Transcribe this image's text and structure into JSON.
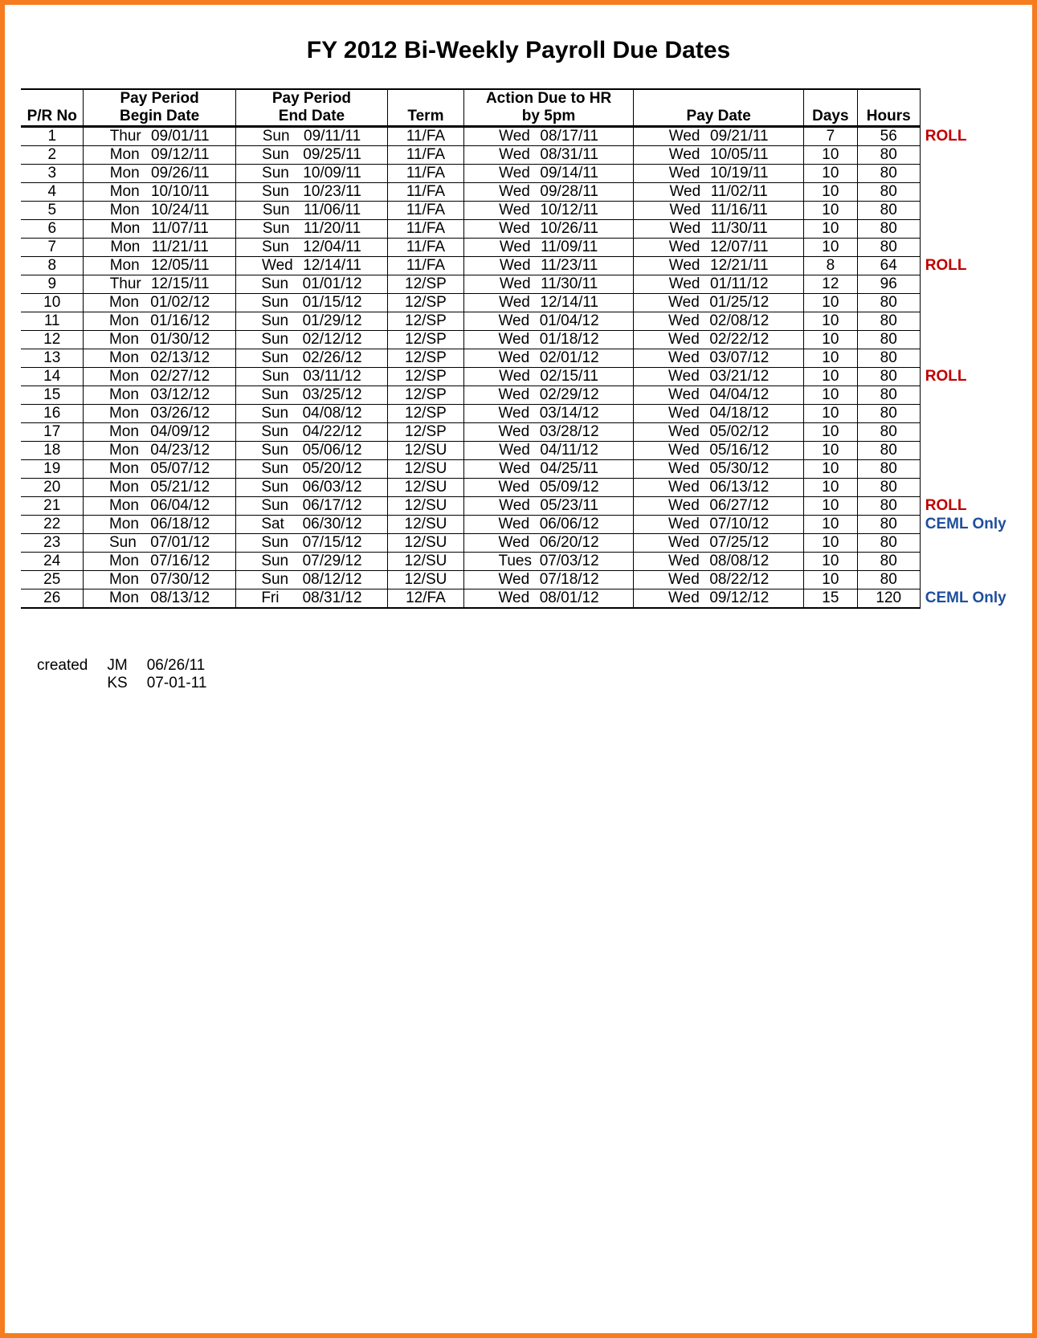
{
  "title": "FY 2012 Bi-Weekly Payroll Due Dates",
  "colors": {
    "border": "#f57c1f",
    "text": "#000000",
    "roll": "#c00000",
    "ceml": "#1f4e9c",
    "rule": "#000000"
  },
  "typography": {
    "title_fontsize": 30,
    "body_fontsize": 19,
    "font_family": "Arial"
  },
  "headers": {
    "prno": "P/R No",
    "begin_top": "Pay Period",
    "begin_bot": "Begin Date",
    "end_top": "Pay Period",
    "end_bot": "End Date",
    "term": "Term",
    "hr_top": "Action Due to HR",
    "hr_bot": "by 5pm",
    "pay": "Pay Date",
    "days": "Days",
    "hours": "Hours"
  },
  "rows": [
    {
      "no": "1",
      "bd": "Thur",
      "bdate": "09/01/11",
      "ed": "Sun",
      "edate": "09/11/11",
      "term": "11/FA",
      "hrd": "Wed",
      "hrdate": "08/17/11",
      "pd": "Wed",
      "pdate": "09/21/11",
      "days": "7",
      "hours": "56",
      "note": "ROLL",
      "note_type": "roll"
    },
    {
      "no": "2",
      "bd": "Mon",
      "bdate": "09/12/11",
      "ed": "Sun",
      "edate": "09/25/11",
      "term": "11/FA",
      "hrd": "Wed",
      "hrdate": "08/31/11",
      "pd": "Wed",
      "pdate": "10/05/11",
      "days": "10",
      "hours": "80",
      "note": "",
      "note_type": ""
    },
    {
      "no": "3",
      "bd": "Mon",
      "bdate": "09/26/11",
      "ed": "Sun",
      "edate": "10/09/11",
      "term": "11/FA",
      "hrd": "Wed",
      "hrdate": "09/14/11",
      "pd": "Wed",
      "pdate": "10/19/11",
      "days": "10",
      "hours": "80",
      "note": "",
      "note_type": ""
    },
    {
      "no": "4",
      "bd": "Mon",
      "bdate": "10/10/11",
      "ed": "Sun",
      "edate": "10/23/11",
      "term": "11/FA",
      "hrd": "Wed",
      "hrdate": "09/28/11",
      "pd": "Wed",
      "pdate": "11/02/11",
      "days": "10",
      "hours": "80",
      "note": "",
      "note_type": ""
    },
    {
      "no": "5",
      "bd": "Mon",
      "bdate": "10/24/11",
      "ed": "Sun",
      "edate": "11/06/11",
      "term": "11/FA",
      "hrd": "Wed",
      "hrdate": "10/12/11",
      "pd": "Wed",
      "pdate": "11/16/11",
      "days": "10",
      "hours": "80",
      "note": "",
      "note_type": ""
    },
    {
      "no": "6",
      "bd": "Mon",
      "bdate": "11/07/11",
      "ed": "Sun",
      "edate": "11/20/11",
      "term": "11/FA",
      "hrd": "Wed",
      "hrdate": "10/26/11",
      "pd": "Wed",
      "pdate": "11/30/11",
      "days": "10",
      "hours": "80",
      "note": "",
      "note_type": ""
    },
    {
      "no": "7",
      "bd": "Mon",
      "bdate": "11/21/11",
      "ed": "Sun",
      "edate": "12/04/11",
      "term": "11/FA",
      "hrd": "Wed",
      "hrdate": "11/09/11",
      "pd": "Wed",
      "pdate": "12/07/11",
      "days": "10",
      "hours": "80",
      "note": "",
      "note_type": ""
    },
    {
      "no": "8",
      "bd": "Mon",
      "bdate": "12/05/11",
      "ed": "Wed",
      "edate": "12/14/11",
      "term": "11/FA",
      "hrd": "Wed",
      "hrdate": "11/23/11",
      "pd": "Wed",
      "pdate": "12/21/11",
      "days": "8",
      "hours": "64",
      "note": "ROLL",
      "note_type": "roll"
    },
    {
      "no": "9",
      "bd": "Thur",
      "bdate": "12/15/11",
      "ed": "Sun",
      "edate": "01/01/12",
      "term": "12/SP",
      "hrd": "Wed",
      "hrdate": "11/30/11",
      "pd": "Wed",
      "pdate": "01/11/12",
      "days": "12",
      "hours": "96",
      "note": "",
      "note_type": ""
    },
    {
      "no": "10",
      "bd": "Mon",
      "bdate": "01/02/12",
      "ed": "Sun",
      "edate": "01/15/12",
      "term": "12/SP",
      "hrd": "Wed",
      "hrdate": "12/14/11",
      "pd": "Wed",
      "pdate": "01/25/12",
      "days": "10",
      "hours": "80",
      "note": "",
      "note_type": ""
    },
    {
      "no": "11",
      "bd": "Mon",
      "bdate": "01/16/12",
      "ed": "Sun",
      "edate": "01/29/12",
      "term": "12/SP",
      "hrd": "Wed",
      "hrdate": "01/04/12",
      "pd": "Wed",
      "pdate": "02/08/12",
      "days": "10",
      "hours": "80",
      "note": "",
      "note_type": ""
    },
    {
      "no": "12",
      "bd": "Mon",
      "bdate": "01/30/12",
      "ed": "Sun",
      "edate": "02/12/12",
      "term": "12/SP",
      "hrd": "Wed",
      "hrdate": "01/18/12",
      "pd": "Wed",
      "pdate": "02/22/12",
      "days": "10",
      "hours": "80",
      "note": "",
      "note_type": ""
    },
    {
      "no": "13",
      "bd": "Mon",
      "bdate": "02/13/12",
      "ed": "Sun",
      "edate": "02/26/12",
      "term": "12/SP",
      "hrd": "Wed",
      "hrdate": "02/01/12",
      "pd": "Wed",
      "pdate": "03/07/12",
      "days": "10",
      "hours": "80",
      "note": "",
      "note_type": ""
    },
    {
      "no": "14",
      "bd": "Mon",
      "bdate": "02/27/12",
      "ed": "Sun",
      "edate": "03/11/12",
      "term": "12/SP",
      "hrd": "Wed",
      "hrdate": "02/15/11",
      "pd": "Wed",
      "pdate": "03/21/12",
      "days": "10",
      "hours": "80",
      "note": "ROLL",
      "note_type": "roll"
    },
    {
      "no": "15",
      "bd": "Mon",
      "bdate": "03/12/12",
      "ed": "Sun",
      "edate": "03/25/12",
      "term": "12/SP",
      "hrd": "Wed",
      "hrdate": "02/29/12",
      "pd": "Wed",
      "pdate": "04/04/12",
      "days": "10",
      "hours": "80",
      "note": "",
      "note_type": ""
    },
    {
      "no": "16",
      "bd": "Mon",
      "bdate": "03/26/12",
      "ed": "Sun",
      "edate": "04/08/12",
      "term": "12/SP",
      "hrd": "Wed",
      "hrdate": "03/14/12",
      "pd": "Wed",
      "pdate": "04/18/12",
      "days": "10",
      "hours": "80",
      "note": "",
      "note_type": ""
    },
    {
      "no": "17",
      "bd": "Mon",
      "bdate": "04/09/12",
      "ed": "Sun",
      "edate": "04/22/12",
      "term": "12/SP",
      "hrd": "Wed",
      "hrdate": "03/28/12",
      "pd": "Wed",
      "pdate": "05/02/12",
      "days": "10",
      "hours": "80",
      "note": "",
      "note_type": ""
    },
    {
      "no": "18",
      "bd": "Mon",
      "bdate": "04/23/12",
      "ed": "Sun",
      "edate": "05/06/12",
      "term": "12/SU",
      "hrd": "Wed",
      "hrdate": "04/11/12",
      "pd": "Wed",
      "pdate": "05/16/12",
      "days": "10",
      "hours": "80",
      "note": "",
      "note_type": ""
    },
    {
      "no": "19",
      "bd": "Mon",
      "bdate": "05/07/12",
      "ed": "Sun",
      "edate": "05/20/12",
      "term": "12/SU",
      "hrd": "Wed",
      "hrdate": "04/25/11",
      "pd": "Wed",
      "pdate": "05/30/12",
      "days": "10",
      "hours": "80",
      "note": "",
      "note_type": ""
    },
    {
      "no": "20",
      "bd": "Mon",
      "bdate": "05/21/12",
      "ed": "Sun",
      "edate": "06/03/12",
      "term": "12/SU",
      "hrd": "Wed",
      "hrdate": "05/09/12",
      "pd": "Wed",
      "pdate": "06/13/12",
      "days": "10",
      "hours": "80",
      "note": "",
      "note_type": ""
    },
    {
      "no": "21",
      "bd": "Mon",
      "bdate": "06/04/12",
      "ed": "Sun",
      "edate": "06/17/12",
      "term": "12/SU",
      "hrd": "Wed",
      "hrdate": "05/23/11",
      "pd": "Wed",
      "pdate": "06/27/12",
      "days": "10",
      "hours": "80",
      "note": "ROLL",
      "note_type": "roll"
    },
    {
      "no": "22",
      "bd": "Mon",
      "bdate": "06/18/12",
      "ed": "Sat",
      "edate": "06/30/12",
      "term": "12/SU",
      "hrd": "Wed",
      "hrdate": "06/06/12",
      "pd": "Wed",
      "pdate": "07/10/12",
      "days": "10",
      "hours": "80",
      "note": "CEML Only",
      "note_type": "ceml"
    },
    {
      "no": "23",
      "bd": "Sun",
      "bdate": "07/01/12",
      "ed": "Sun",
      "edate": "07/15/12",
      "term": "12/SU",
      "hrd": "Wed",
      "hrdate": "06/20/12",
      "pd": "Wed",
      "pdate": "07/25/12",
      "days": "10",
      "hours": "80",
      "note": "",
      "note_type": ""
    },
    {
      "no": "24",
      "bd": "Mon",
      "bdate": "07/16/12",
      "ed": "Sun",
      "edate": "07/29/12",
      "term": "12/SU",
      "hrd": "Tues",
      "hrdate": "07/03/12",
      "pd": "Wed",
      "pdate": "08/08/12",
      "days": "10",
      "hours": "80",
      "note": "",
      "note_type": ""
    },
    {
      "no": "25",
      "bd": "Mon",
      "bdate": "07/30/12",
      "ed": "Sun",
      "edate": "08/12/12",
      "term": "12/SU",
      "hrd": "Wed",
      "hrdate": "07/18/12",
      "pd": "Wed",
      "pdate": "08/22/12",
      "days": "10",
      "hours": "80",
      "note": "",
      "note_type": ""
    },
    {
      "no": "26",
      "bd": "Mon",
      "bdate": "08/13/12",
      "ed": "Fri",
      "edate": "08/31/12",
      "term": "12/FA",
      "hrd": "Wed",
      "hrdate": "08/01/12",
      "pd": "Wed",
      "pdate": "09/12/12",
      "days": "15",
      "hours": "120",
      "note": "CEML Only",
      "note_type": "ceml"
    }
  ],
  "footer": {
    "label": "created",
    "lines": [
      {
        "initials": "JM",
        "date": "06/26/11"
      },
      {
        "initials": "KS",
        "date": "07-01-11"
      }
    ]
  }
}
